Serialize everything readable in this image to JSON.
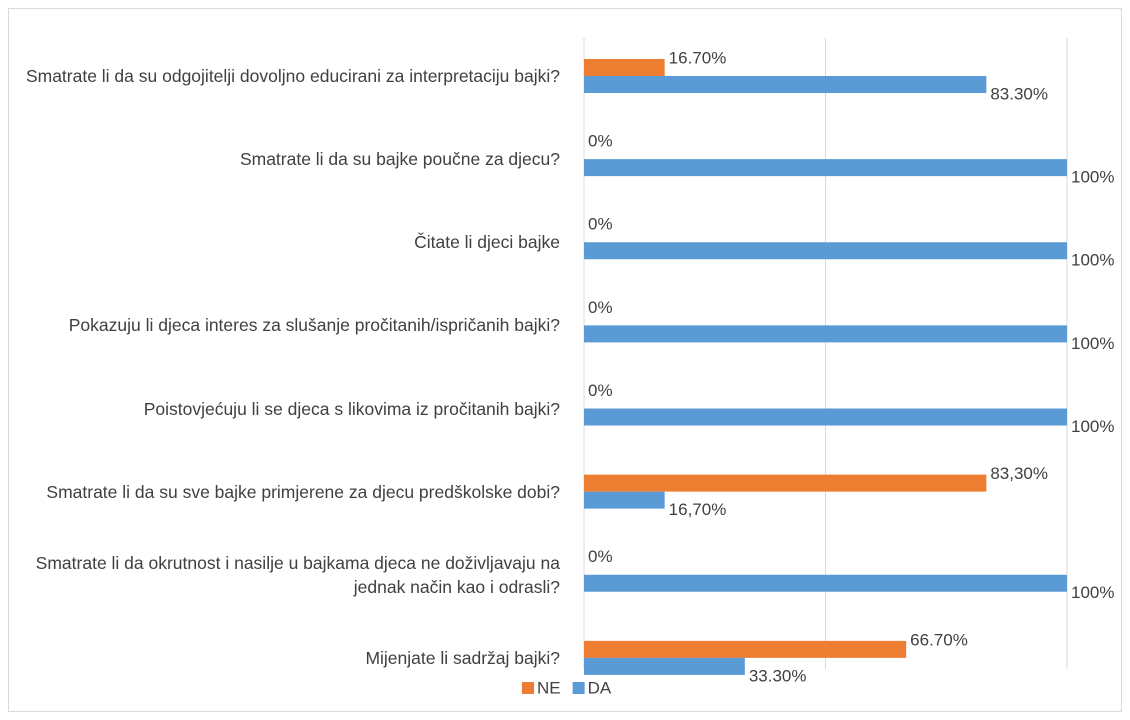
{
  "chart_data": {
    "type": "bar",
    "orientation": "horizontal",
    "categories": [
      "Smatrate li da su odgojitelji dovoljno educirani za interpretaciju bajki?",
      "Smatrate li da su bajke poučne za djecu?",
      "Čitate li djeci bajke",
      "Pokazuju li djeca interes za slušanje pročitanih/ispričanih bajki?",
      "Poistovjećuju li se djeca s likovima iz pročitanih bajki?",
      "Smatrate li da su sve bajke primjerene za djecu predškolske dobi?",
      "Smatrate li da okrutnost i nasilje u bajkama djeca ne doživljavaju na jednak način kao i odrasli?",
      "Mijenjate li sadržaj bajki?"
    ],
    "series": [
      {
        "name": "NE",
        "color": "#ed7d31",
        "values": [
          16.7,
          0,
          0,
          0,
          0,
          83.3,
          0,
          66.7
        ],
        "value_labels": [
          "16.70%",
          "0%",
          "0%",
          "0%",
          "0%",
          "83,30%",
          "0%",
          "66.70%"
        ]
      },
      {
        "name": "DA",
        "color": "#5b9bd5",
        "values": [
          83.3,
          100,
          100,
          100,
          100,
          16.7,
          100,
          33.3
        ],
        "value_labels": [
          "83.30%",
          "100%",
          "100%",
          "100%",
          "100%",
          "16,70%",
          "100%",
          "33.30%"
        ]
      }
    ],
    "xlim": [
      0,
      100
    ],
    "xticks": [
      0,
      50,
      100
    ],
    "grid": true,
    "legend": "bottom"
  }
}
